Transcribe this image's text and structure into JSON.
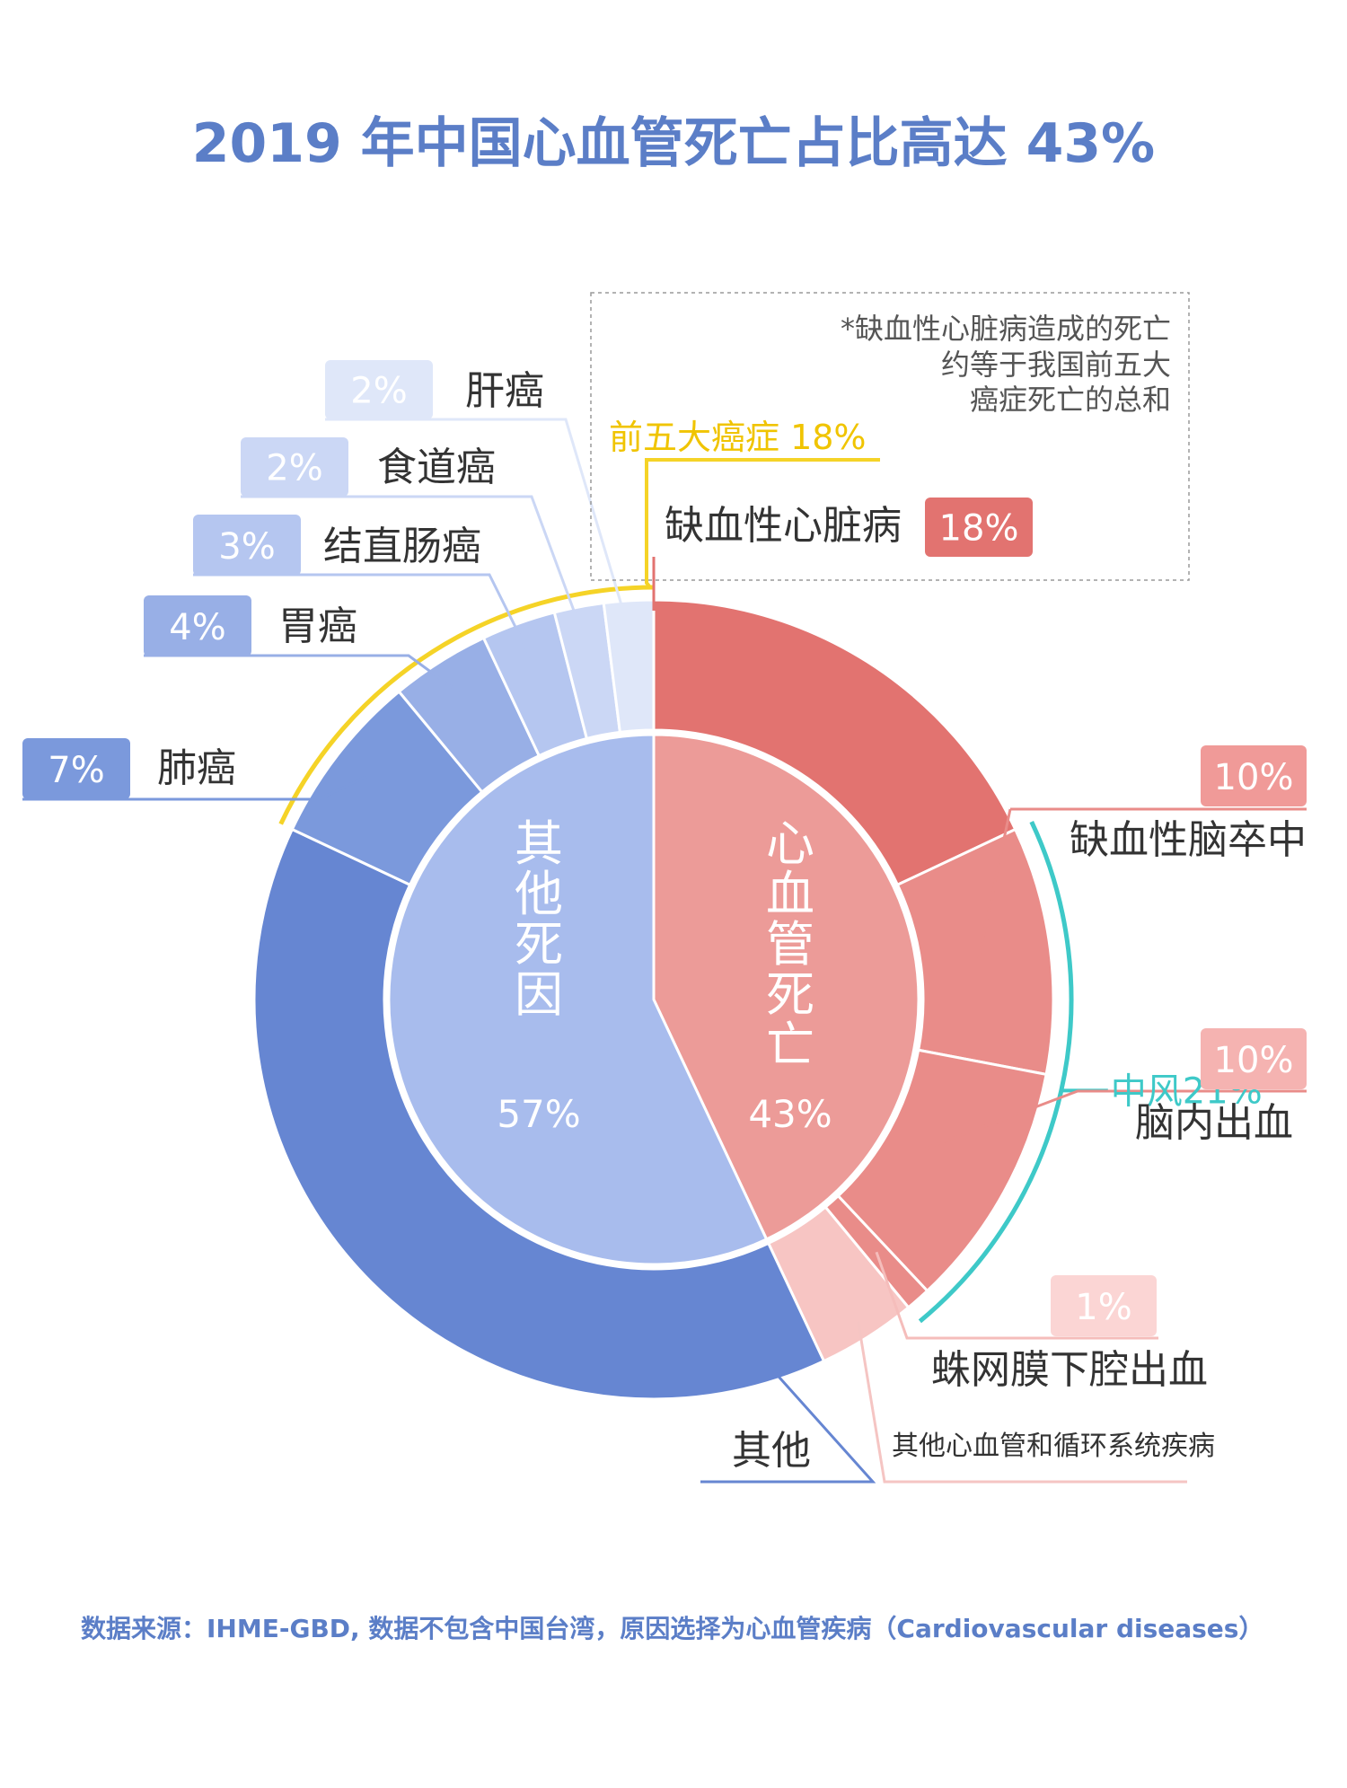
{
  "colors": {
    "title": "#5b7ec7",
    "cvd_outer_ihd": "#e27370",
    "cvd_outer_stroke": "#e98c89",
    "cvd_outer_other": "#f7c5c3",
    "cvd_inner": "#ec9b98",
    "other_outer_big": "#6686d2",
    "other_inner": "#a8bced",
    "lung": "#7b99dc",
    "stomach": "#98afe6",
    "colorectal": "#b5c6f0",
    "esophagus": "#cbd7f5",
    "liver": "#dfe7f9",
    "cancer_bracket": "#f5d327",
    "stroke_bracket": "#3ec9c8",
    "label_dark": "#333333",
    "footer": "#5b7ec7"
  },
  "title": "2019 年中国心血管死亡占比高达 43%",
  "note": {
    "lines": [
      "*缺血性心脏病造成的死亡",
      "约等于我国前五大",
      "癌症死亡的总和"
    ]
  },
  "cancer_group_label": "前五大癌症 18%",
  "stroke_group_label": "中风21%",
  "footer": "数据来源：IHME-GBD, 数据不包含中国台湾，原因选择为心血管疾病（Cardiovascular diseases）",
  "chart_data": {
    "type": "pie",
    "title": "2019 年中国心血管死亡占比高达 43%",
    "inner_ring": [
      {
        "name": "心血管死亡",
        "value": 43,
        "value_label": "43%"
      },
      {
        "name": "其他死因",
        "value": 57,
        "value_label": "57%"
      }
    ],
    "outer_ring": [
      {
        "name": "缺血性心脏病",
        "value": 18,
        "value_label": "18%",
        "parent": "心血管死亡"
      },
      {
        "name": "缺血性脑卒中",
        "value": 10,
        "value_label": "10%",
        "parent": "心血管死亡",
        "group": "中风21%"
      },
      {
        "name": "脑内出血",
        "value": 10,
        "value_label": "10%",
        "parent": "心血管死亡",
        "group": "中风21%"
      },
      {
        "name": "蛛网膜下腔出血",
        "value": 1,
        "value_label": "1%",
        "parent": "心血管死亡",
        "group": "中风21%"
      },
      {
        "name": "其他心血管和循环系统疾病",
        "value": 4,
        "value_label": "",
        "parent": "心血管死亡"
      },
      {
        "name": "其他",
        "value": 39,
        "value_label": "",
        "parent": "其他死因"
      },
      {
        "name": "肺癌",
        "value": 7,
        "value_label": "7%",
        "parent": "其他死因",
        "group": "前五大癌症 18%"
      },
      {
        "name": "胃癌",
        "value": 4,
        "value_label": "4%",
        "parent": "其他死因",
        "group": "前五大癌症 18%"
      },
      {
        "name": "结直肠癌",
        "value": 3,
        "value_label": "3%",
        "parent": "其他死因",
        "group": "前五大癌症 18%"
      },
      {
        "name": "食道癌",
        "value": 2,
        "value_label": "2%",
        "parent": "其他死因",
        "group": "前五大癌症 18%"
      },
      {
        "name": "肝癌",
        "value": 2,
        "value_label": "2%",
        "parent": "其他死因",
        "group": "前五大癌症 18%"
      }
    ]
  }
}
